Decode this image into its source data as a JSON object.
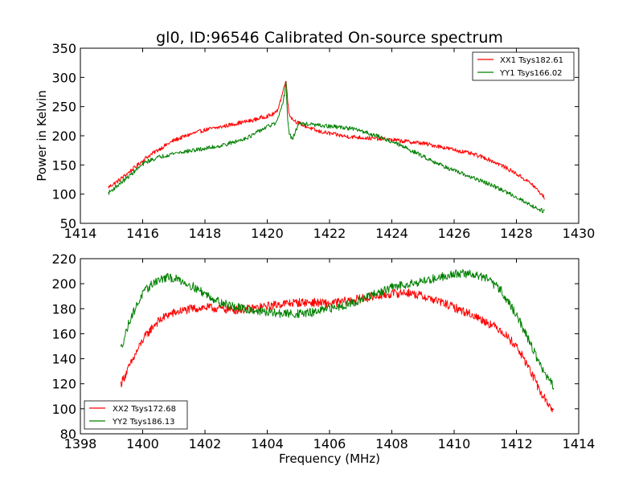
{
  "chart_data": [
    {
      "type": "line",
      "title": "gl0, ID:96546 Calibrated On-source spectrum",
      "xlabel": "",
      "ylabel": "Power in Kelvin",
      "xlim": [
        1414,
        1430
      ],
      "ylim": [
        50,
        350
      ],
      "xticks": [
        "1414",
        "1416",
        "1418",
        "1420",
        "1422",
        "1424",
        "1426",
        "1428",
        "1430"
      ],
      "yticks": [
        "50",
        "100",
        "150",
        "200",
        "250",
        "300",
        "350"
      ],
      "grid": false,
      "legend_position": "upper right",
      "series": [
        {
          "name": "XX1 Tsys182.61",
          "color": "#ff0000",
          "x": [
            1414.9,
            1415.2,
            1415.5,
            1415.8,
            1416.1,
            1416.5,
            1417.0,
            1417.5,
            1418.0,
            1418.5,
            1419.0,
            1419.5,
            1419.8,
            1420.1,
            1420.3,
            1420.45,
            1420.55,
            1420.6,
            1420.65,
            1420.7,
            1420.8,
            1421.0,
            1421.3,
            1421.6,
            1422.0,
            1422.5,
            1423.0,
            1423.5,
            1424.0,
            1424.5,
            1425.0,
            1425.5,
            1426.0,
            1426.5,
            1427.0,
            1427.5,
            1428.0,
            1428.5,
            1428.9
          ],
          "y": [
            112,
            122,
            135,
            148,
            162,
            176,
            192,
            202,
            210,
            215,
            221,
            226,
            231,
            235,
            240,
            265,
            285,
            300,
            262,
            238,
            229,
            222,
            215,
            208,
            204,
            199,
            197,
            195,
            193,
            190,
            187,
            182,
            176,
            170,
            162,
            150,
            135,
            117,
            94
          ]
        },
        {
          "name": "YY1 Tsys166.02",
          "color": "#008000",
          "x": [
            1414.9,
            1415.2,
            1415.5,
            1415.8,
            1416.1,
            1416.5,
            1417.0,
            1417.5,
            1418.0,
            1418.5,
            1419.0,
            1419.5,
            1419.8,
            1420.1,
            1420.3,
            1420.45,
            1420.55,
            1420.6,
            1420.65,
            1420.7,
            1420.8,
            1421.0,
            1421.3,
            1421.6,
            1422.0,
            1422.5,
            1423.0,
            1423.5,
            1424.0,
            1424.5,
            1425.0,
            1425.5,
            1426.0,
            1426.5,
            1427.0,
            1427.5,
            1428.0,
            1428.5,
            1428.9
          ],
          "y": [
            102,
            115,
            128,
            142,
            155,
            163,
            170,
            174,
            178,
            183,
            190,
            200,
            210,
            218,
            222,
            245,
            270,
            295,
            232,
            205,
            193,
            220,
            220,
            218,
            216,
            214,
            209,
            200,
            190,
            178,
            165,
            152,
            140,
            130,
            120,
            108,
            95,
            80,
            70
          ]
        }
      ]
    },
    {
      "type": "line",
      "title": "",
      "xlabel": "Frequency (MHz)",
      "ylabel": "",
      "xlim": [
        1398,
        1414
      ],
      "ylim": [
        80,
        220
      ],
      "xticks": [
        "1398",
        "1400",
        "1402",
        "1404",
        "1406",
        "1408",
        "1410",
        "1412",
        "1414"
      ],
      "yticks": [
        "80",
        "100",
        "120",
        "140",
        "160",
        "180",
        "200",
        "220"
      ],
      "grid": false,
      "legend_position": "lower left",
      "series": [
        {
          "name": "XX2 Tsys172.68",
          "color": "#ff0000",
          "x": [
            1399.3,
            1399.6,
            1400.0,
            1400.4,
            1400.8,
            1401.2,
            1401.6,
            1402.0,
            1402.5,
            1403.0,
            1403.5,
            1404.0,
            1404.5,
            1405.0,
            1405.5,
            1406.0,
            1406.5,
            1407.0,
            1407.5,
            1408.0,
            1408.5,
            1409.0,
            1409.5,
            1410.0,
            1410.5,
            1411.0,
            1411.5,
            1412.0,
            1412.4,
            1412.8,
            1413.2
          ],
          "y": [
            120,
            135,
            155,
            168,
            175,
            178,
            180,
            181,
            180,
            179,
            180,
            182,
            184,
            185,
            185,
            184,
            186,
            188,
            190,
            192,
            193,
            190,
            186,
            181,
            176,
            170,
            163,
            150,
            133,
            112,
            98
          ]
        },
        {
          "name": "YY2 Tsys186.13",
          "color": "#008000",
          "x": [
            1399.3,
            1399.6,
            1400.0,
            1400.4,
            1400.8,
            1401.2,
            1401.6,
            1402.0,
            1402.5,
            1403.0,
            1403.5,
            1404.0,
            1404.5,
            1405.0,
            1405.5,
            1406.0,
            1406.5,
            1407.0,
            1407.5,
            1408.0,
            1408.5,
            1409.0,
            1409.5,
            1410.0,
            1410.5,
            1411.0,
            1411.5,
            1412.0,
            1412.4,
            1412.8,
            1413.2
          ],
          "y": [
            148,
            172,
            192,
            202,
            205,
            203,
            198,
            192,
            185,
            181,
            179,
            177,
            176,
            176,
            177,
            180,
            183,
            187,
            192,
            197,
            200,
            202,
            205,
            208,
            208,
            205,
            195,
            175,
            155,
            133,
            117
          ]
        }
      ]
    }
  ]
}
